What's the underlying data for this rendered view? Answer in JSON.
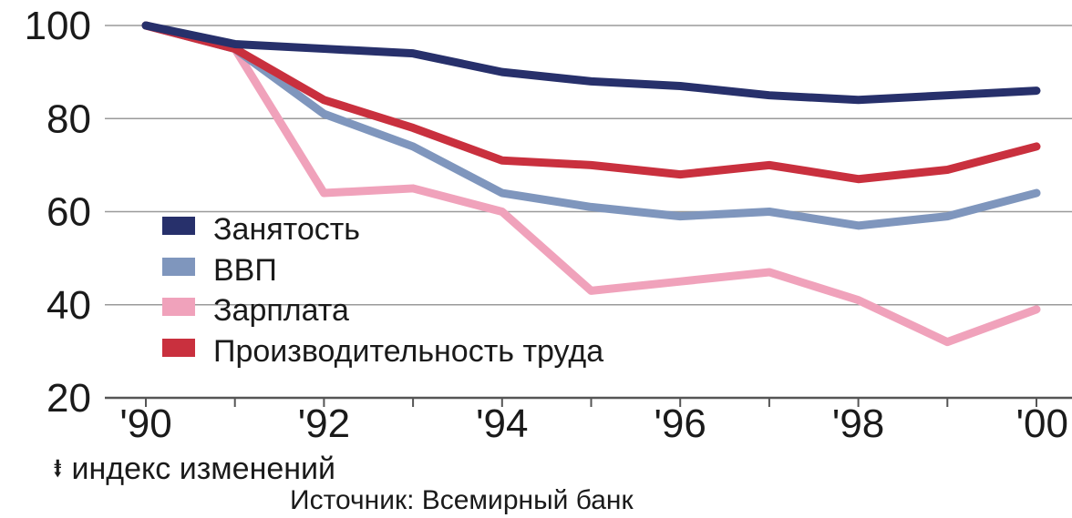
{
  "chart_data": {
    "type": "line",
    "x": [
      "1990",
      "1991",
      "1992",
      "1993",
      "1994",
      "1995",
      "1996",
      "1997",
      "1998",
      "1999",
      "2000"
    ],
    "x_tick_labels": [
      "'90",
      "'92",
      "'94",
      "'96",
      "'98",
      "'00"
    ],
    "y_ticks": [
      "100",
      "80",
      "60",
      "40",
      "20"
    ],
    "ylim": [
      20,
      100
    ],
    "grid": true,
    "legend_position": "left-middle",
    "series": [
      {
        "name": "Занятость",
        "color": "#27306b",
        "values": [
          100,
          96,
          95,
          94,
          90,
          88,
          87,
          85,
          84,
          85,
          86
        ]
      },
      {
        "name": "ВВП",
        "color": "#7f96bd",
        "values": [
          100,
          95,
          81,
          74,
          64,
          61,
          59,
          60,
          57,
          59,
          64
        ]
      },
      {
        "name": "Зарплата",
        "color": "#f0a2bb",
        "values": [
          100,
          95,
          64,
          65,
          60,
          43,
          45,
          47,
          41,
          32,
          39
        ]
      },
      {
        "name": "Производительность труда",
        "color": "#c9303e",
        "values": [
          100,
          95,
          84,
          78,
          71,
          70,
          68,
          70,
          67,
          69,
          74
        ]
      }
    ]
  },
  "footer": {
    "index_note": "индекс изменений",
    "source": "Источник: Всемирный банк"
  }
}
